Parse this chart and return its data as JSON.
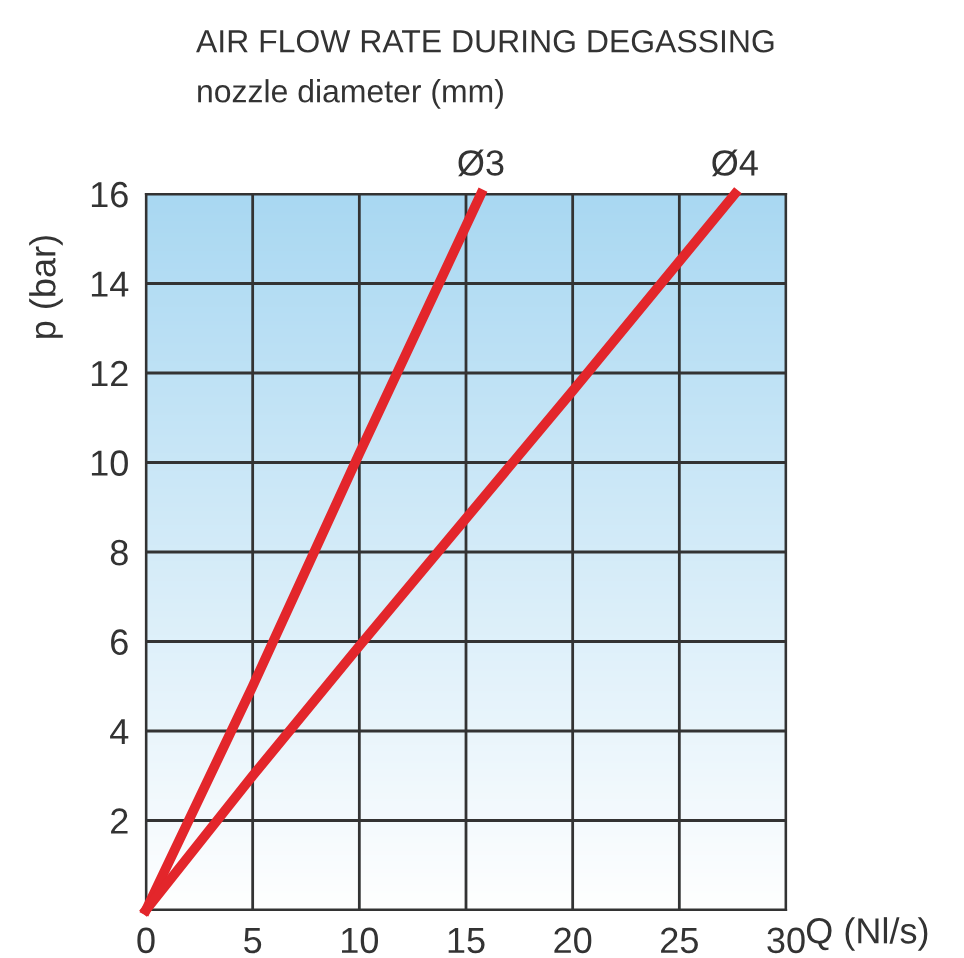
{
  "chart_data": {
    "type": "line",
    "title": "AIR FLOW RATE DURING DEGASSING",
    "subtitle": "nozzle diameter (mm)",
    "xlabel": "Q (Nl/s)",
    "ylabel": "p (bar)",
    "series": [
      {
        "name": "Ø3",
        "color": "#e3262b",
        "x": [
          0,
          5,
          10,
          15.7
        ],
        "values": [
          0,
          5,
          10.2,
          16
        ]
      },
      {
        "name": "Ø4",
        "color": "#e3262b",
        "x": [
          0,
          5,
          10,
          20,
          27.6
        ],
        "values": [
          0,
          3,
          5.9,
          11.6,
          16
        ]
      }
    ],
    "xlim": [
      0,
      30
    ],
    "ylim": [
      0,
      16
    ],
    "xticks": [
      0,
      5,
      10,
      15,
      20,
      25,
      30
    ],
    "yticks": [
      {
        "value": 0,
        "label": null
      },
      2,
      4,
      6,
      8,
      10,
      12,
      14,
      16
    ],
    "grid": true,
    "legend": false,
    "marker": "none",
    "line_style": "solid"
  }
}
